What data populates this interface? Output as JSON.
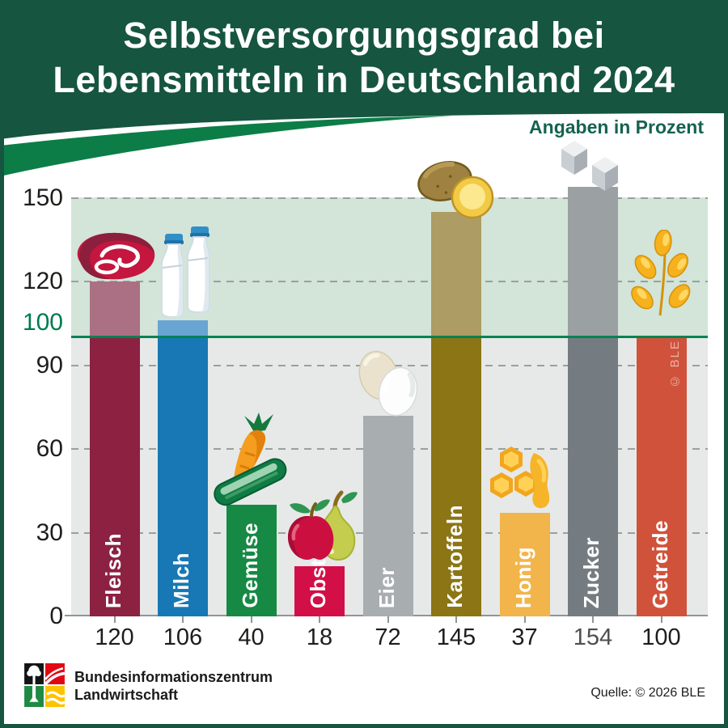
{
  "header": {
    "title_line1": "Selbstversorgungsgrad bei",
    "title_line2": "Lebensmitteln in Deutschland 2024",
    "subtitle": "Angaben in Prozent"
  },
  "chart_data": {
    "type": "bar",
    "title": "Selbstversorgungsgrad bei Lebensmitteln in Deutschland 2024",
    "subtitle": "Angaben in Prozent",
    "unit": "Prozent",
    "ylim": [
      0,
      160
    ],
    "y_ticks": [
      0,
      30,
      60,
      90,
      100,
      120,
      150
    ],
    "reference_line": 100,
    "grid": "dashed-horizontal",
    "categories": [
      "Fleisch",
      "Milch",
      "Gemüse",
      "Obst",
      "Eier",
      "Kartoffeln",
      "Honig",
      "Zucker",
      "Getreide"
    ],
    "values": [
      120,
      106,
      40,
      18,
      72,
      145,
      37,
      154,
      100
    ],
    "series": [
      {
        "label": "Fleisch",
        "value": 120,
        "icon": "meat-icon",
        "color": "#8c2142",
        "color_above_100": "#ab7084"
      },
      {
        "label": "Milch",
        "value": 106,
        "icon": "milk-bottles-icon",
        "color": "#1878b5",
        "color_above_100": "#68a5d3"
      },
      {
        "label": "Gemüse",
        "value": 40,
        "icon": "vegetables-icon",
        "color": "#168945"
      },
      {
        "label": "Obst",
        "value": 18,
        "icon": "fruit-icon",
        "color": "#d30f47"
      },
      {
        "label": "Eier",
        "value": 72,
        "icon": "eggs-icon",
        "color": "#a8adb0"
      },
      {
        "label": "Kartoffeln",
        "value": 145,
        "icon": "potatoes-icon",
        "color": "#8b7514",
        "color_above_100": "#ad9c63"
      },
      {
        "label": "Honig",
        "value": 37,
        "icon": "honey-icon",
        "color": "#f2b54b"
      },
      {
        "label": "Zucker",
        "value": 154,
        "icon": "sugar-cubes-icon",
        "color": "#747c81",
        "color_above_100": "#9ba0a3",
        "value_label_color": "#4f4f4f"
      },
      {
        "label": "Getreide",
        "value": 100,
        "icon": "wheat-icon",
        "color": "#d0523b"
      }
    ],
    "watermark": "© BLE",
    "colors": {
      "band_above_100": "#d3e4d9",
      "band_below_100": "#e6e9e8",
      "reference_line": "#008352",
      "grid_line": "#98a19e",
      "axis_line": "#8e969a",
      "tick_label_default": "#1d1d1b",
      "tick_label_100": "#007a4e"
    }
  },
  "footer": {
    "org_line1": "Bundesinformationszentrum",
    "org_line2": "Landwirtschaft",
    "source": "Quelle: © 2026 BLE"
  },
  "theme": {
    "header_green": "#165540",
    "swoosh_green": "#0c7d47",
    "subtitle_green": "#156350"
  }
}
